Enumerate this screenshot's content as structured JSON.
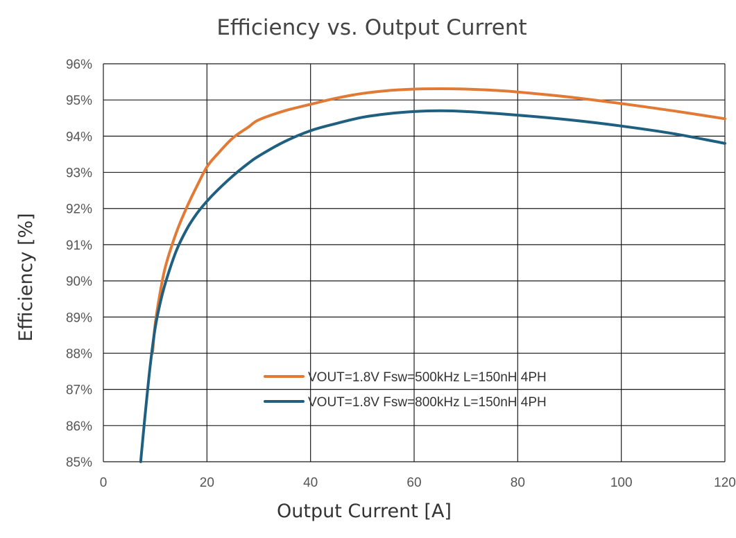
{
  "chart_data": {
    "type": "line",
    "title": "Efficiency vs. Output Current",
    "xlabel": "Output Current [A]",
    "ylabel": "Efficiency [%]",
    "xlim": [
      0,
      120
    ],
    "ylim": [
      85,
      96
    ],
    "x_ticks": [
      0,
      20,
      40,
      60,
      80,
      100,
      120
    ],
    "x_tick_labels": [
      "0",
      "20",
      "40",
      "60",
      "80",
      "100",
      "120"
    ],
    "y_ticks": [
      85,
      86,
      87,
      88,
      89,
      90,
      91,
      92,
      93,
      94,
      95,
      96
    ],
    "y_tick_labels": [
      "85%",
      "86%",
      "87%",
      "88%",
      "89%",
      "90%",
      "91%",
      "92%",
      "93%",
      "94%",
      "95%",
      "96%"
    ],
    "grid": true,
    "legend_position": "center-right",
    "series": [
      {
        "name": "VOUT=1.8V Fsw=500kHz L=150nH 4PH",
        "color": "#E07A35",
        "x": [
          9.5,
          10,
          11,
          12,
          14,
          16,
          18,
          20,
          22,
          25,
          28,
          30,
          35,
          40,
          45,
          50,
          55,
          60,
          65,
          70,
          75,
          80,
          90,
          100,
          110,
          120
        ],
        "y": [
          88.0,
          88.8,
          89.7,
          90.4,
          91.3,
          92.0,
          92.6,
          93.15,
          93.5,
          93.95,
          94.25,
          94.45,
          94.7,
          94.88,
          95.05,
          95.18,
          95.26,
          95.3,
          95.31,
          95.3,
          95.27,
          95.22,
          95.08,
          94.9,
          94.7,
          94.48
        ]
      },
      {
        "name": "VOUT=1.8V Fsw=800kHz L=150nH 4PH",
        "color": "#1F5F80",
        "x": [
          7.2,
          8,
          9,
          10,
          11,
          12,
          14,
          16,
          18,
          20,
          22,
          25,
          28,
          30,
          35,
          40,
          45,
          50,
          55,
          60,
          65,
          70,
          80,
          90,
          100,
          110,
          120
        ],
        "y": [
          85.0,
          86.2,
          87.6,
          88.7,
          89.4,
          89.95,
          90.8,
          91.4,
          91.85,
          92.2,
          92.5,
          92.9,
          93.25,
          93.45,
          93.85,
          94.15,
          94.35,
          94.52,
          94.62,
          94.68,
          94.7,
          94.68,
          94.58,
          94.45,
          94.28,
          94.07,
          93.8
        ]
      }
    ]
  }
}
